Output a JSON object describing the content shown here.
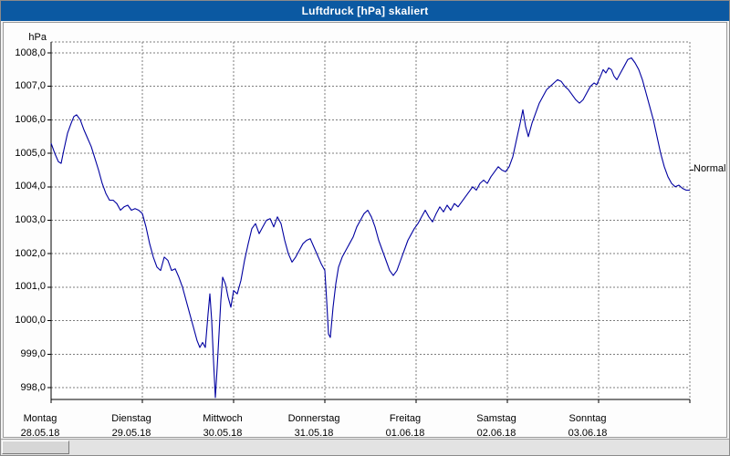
{
  "window": {
    "title": "Luftdruck [hPa] skaliert"
  },
  "colors": {
    "titlebar": "#0b59a2",
    "titlebar_text": "#ffffff",
    "line": "#0000a0",
    "grid": "#7d7d7d",
    "plot_background": "#ffffff"
  },
  "chart_data": {
    "type": "line",
    "title": "Luftdruck [hPa] skaliert",
    "ylabel": "hPa",
    "xlabel": "",
    "ylim": [
      998,
      1008
    ],
    "ytick_step": 1,
    "ytick_labels": [
      "1008,0",
      "1007,0",
      "1006,0",
      "1005,0",
      "1004,0",
      "1003,0",
      "1002,0",
      "1001,0",
      "1000,0",
      "999,0",
      "998,0"
    ],
    "grid": "dashed",
    "legend_position": "none",
    "normal_label": "Normal",
    "normal_value": 1004.5,
    "days": [
      {
        "name": "Montag",
        "date": "28.05.18"
      },
      {
        "name": "Dienstag",
        "date": "29.05.18"
      },
      {
        "name": "Mittwoch",
        "date": "30.05.18"
      },
      {
        "name": "Donnerstag",
        "date": "31.05.18"
      },
      {
        "name": "Freitag",
        "date": "01.06.18"
      },
      {
        "name": "Samstag",
        "date": "02.06.18"
      },
      {
        "name": "Sonntag",
        "date": "03.06.18"
      }
    ],
    "x_unit_days": 7,
    "series": [
      {
        "name": "Luftdruck",
        "points": [
          [
            0.0,
            1005.3
          ],
          [
            0.04,
            1005.0
          ],
          [
            0.08,
            1004.75
          ],
          [
            0.11,
            1004.7
          ],
          [
            0.14,
            1005.1
          ],
          [
            0.18,
            1005.6
          ],
          [
            0.22,
            1005.9
          ],
          [
            0.25,
            1006.1
          ],
          [
            0.28,
            1006.15
          ],
          [
            0.32,
            1006.0
          ],
          [
            0.36,
            1005.7
          ],
          [
            0.4,
            1005.45
          ],
          [
            0.44,
            1005.2
          ],
          [
            0.48,
            1004.85
          ],
          [
            0.52,
            1004.5
          ],
          [
            0.56,
            1004.1
          ],
          [
            0.6,
            1003.8
          ],
          [
            0.64,
            1003.6
          ],
          [
            0.68,
            1003.6
          ],
          [
            0.72,
            1003.5
          ],
          [
            0.76,
            1003.3
          ],
          [
            0.8,
            1003.4
          ],
          [
            0.84,
            1003.45
          ],
          [
            0.88,
            1003.3
          ],
          [
            0.92,
            1003.35
          ],
          [
            0.96,
            1003.3
          ],
          [
            1.0,
            1003.2
          ],
          [
            1.04,
            1002.8
          ],
          [
            1.08,
            1002.3
          ],
          [
            1.12,
            1001.9
          ],
          [
            1.16,
            1001.6
          ],
          [
            1.2,
            1001.5
          ],
          [
            1.24,
            1001.9
          ],
          [
            1.28,
            1001.8
          ],
          [
            1.32,
            1001.5
          ],
          [
            1.36,
            1001.55
          ],
          [
            1.4,
            1001.3
          ],
          [
            1.44,
            1001.0
          ],
          [
            1.48,
            1000.6
          ],
          [
            1.52,
            1000.2
          ],
          [
            1.56,
            999.8
          ],
          [
            1.6,
            999.4
          ],
          [
            1.63,
            999.2
          ],
          [
            1.66,
            999.35
          ],
          [
            1.69,
            999.2
          ],
          [
            1.72,
            1000.2
          ],
          [
            1.74,
            1000.8
          ],
          [
            1.76,
            1000.0
          ],
          [
            1.78,
            998.8
          ],
          [
            1.8,
            997.7
          ],
          [
            1.82,
            998.6
          ],
          [
            1.84,
            999.6
          ],
          [
            1.86,
            1000.6
          ],
          [
            1.88,
            1001.3
          ],
          [
            1.91,
            1001.1
          ],
          [
            1.94,
            1000.7
          ],
          [
            1.97,
            1000.4
          ],
          [
            2.0,
            1000.9
          ],
          [
            2.04,
            1000.8
          ],
          [
            2.08,
            1001.2
          ],
          [
            2.12,
            1001.8
          ],
          [
            2.16,
            1002.3
          ],
          [
            2.2,
            1002.75
          ],
          [
            2.24,
            1002.9
          ],
          [
            2.28,
            1002.6
          ],
          [
            2.32,
            1002.8
          ],
          [
            2.36,
            1003.0
          ],
          [
            2.4,
            1003.05
          ],
          [
            2.44,
            1002.8
          ],
          [
            2.48,
            1003.1
          ],
          [
            2.52,
            1002.9
          ],
          [
            2.56,
            1002.4
          ],
          [
            2.6,
            1002.0
          ],
          [
            2.64,
            1001.75
          ],
          [
            2.68,
            1001.9
          ],
          [
            2.72,
            1002.1
          ],
          [
            2.76,
            1002.3
          ],
          [
            2.8,
            1002.4
          ],
          [
            2.84,
            1002.45
          ],
          [
            2.88,
            1002.2
          ],
          [
            2.92,
            1001.95
          ],
          [
            2.96,
            1001.7
          ],
          [
            3.0,
            1001.5
          ],
          [
            3.02,
            1000.6
          ],
          [
            3.04,
            999.6
          ],
          [
            3.06,
            999.5
          ],
          [
            3.09,
            1000.4
          ],
          [
            3.12,
            1001.1
          ],
          [
            3.15,
            1001.6
          ],
          [
            3.19,
            1001.9
          ],
          [
            3.23,
            1002.1
          ],
          [
            3.27,
            1002.3
          ],
          [
            3.31,
            1002.5
          ],
          [
            3.35,
            1002.8
          ],
          [
            3.39,
            1003.0
          ],
          [
            3.43,
            1003.2
          ],
          [
            3.47,
            1003.3
          ],
          [
            3.51,
            1003.1
          ],
          [
            3.55,
            1002.8
          ],
          [
            3.59,
            1002.4
          ],
          [
            3.63,
            1002.1
          ],
          [
            3.67,
            1001.8
          ],
          [
            3.71,
            1001.5
          ],
          [
            3.75,
            1001.35
          ],
          [
            3.79,
            1001.5
          ],
          [
            3.83,
            1001.8
          ],
          [
            3.87,
            1002.1
          ],
          [
            3.91,
            1002.4
          ],
          [
            3.95,
            1002.6
          ],
          [
            3.98,
            1002.75
          ],
          [
            4.02,
            1002.9
          ],
          [
            4.06,
            1003.1
          ],
          [
            4.1,
            1003.3
          ],
          [
            4.14,
            1003.1
          ],
          [
            4.18,
            1002.95
          ],
          [
            4.22,
            1003.2
          ],
          [
            4.26,
            1003.4
          ],
          [
            4.3,
            1003.25
          ],
          [
            4.34,
            1003.45
          ],
          [
            4.38,
            1003.3
          ],
          [
            4.42,
            1003.5
          ],
          [
            4.46,
            1003.4
          ],
          [
            4.5,
            1003.55
          ],
          [
            4.54,
            1003.7
          ],
          [
            4.58,
            1003.85
          ],
          [
            4.62,
            1004.0
          ],
          [
            4.66,
            1003.9
          ],
          [
            4.7,
            1004.1
          ],
          [
            4.74,
            1004.2
          ],
          [
            4.78,
            1004.1
          ],
          [
            4.82,
            1004.3
          ],
          [
            4.86,
            1004.45
          ],
          [
            4.9,
            1004.6
          ],
          [
            4.94,
            1004.5
          ],
          [
            4.98,
            1004.45
          ],
          [
            5.02,
            1004.6
          ],
          [
            5.06,
            1004.9
          ],
          [
            5.1,
            1005.4
          ],
          [
            5.14,
            1005.9
          ],
          [
            5.17,
            1006.3
          ],
          [
            5.2,
            1005.8
          ],
          [
            5.23,
            1005.5
          ],
          [
            5.27,
            1005.9
          ],
          [
            5.31,
            1006.2
          ],
          [
            5.35,
            1006.5
          ],
          [
            5.39,
            1006.7
          ],
          [
            5.43,
            1006.9
          ],
          [
            5.47,
            1007.0
          ],
          [
            5.51,
            1007.1
          ],
          [
            5.55,
            1007.2
          ],
          [
            5.59,
            1007.15
          ],
          [
            5.63,
            1007.0
          ],
          [
            5.67,
            1006.9
          ],
          [
            5.71,
            1006.75
          ],
          [
            5.75,
            1006.6
          ],
          [
            5.79,
            1006.5
          ],
          [
            5.83,
            1006.6
          ],
          [
            5.87,
            1006.8
          ],
          [
            5.91,
            1007.0
          ],
          [
            5.95,
            1007.1
          ],
          [
            5.98,
            1007.05
          ],
          [
            6.02,
            1007.3
          ],
          [
            6.05,
            1007.5
          ],
          [
            6.08,
            1007.4
          ],
          [
            6.11,
            1007.55
          ],
          [
            6.14,
            1007.5
          ],
          [
            6.17,
            1007.3
          ],
          [
            6.2,
            1007.2
          ],
          [
            6.24,
            1007.4
          ],
          [
            6.28,
            1007.6
          ],
          [
            6.32,
            1007.8
          ],
          [
            6.36,
            1007.85
          ],
          [
            6.4,
            1007.7
          ],
          [
            6.44,
            1007.5
          ],
          [
            6.48,
            1007.2
          ],
          [
            6.52,
            1006.8
          ],
          [
            6.56,
            1006.4
          ],
          [
            6.6,
            1006.0
          ],
          [
            6.64,
            1005.5
          ],
          [
            6.68,
            1005.0
          ],
          [
            6.72,
            1004.6
          ],
          [
            6.76,
            1004.3
          ],
          [
            6.8,
            1004.1
          ],
          [
            6.84,
            1004.0
          ],
          [
            6.88,
            1004.05
          ],
          [
            6.92,
            1003.95
          ],
          [
            6.96,
            1003.9
          ],
          [
            7.0,
            1003.9
          ]
        ]
      }
    ]
  }
}
